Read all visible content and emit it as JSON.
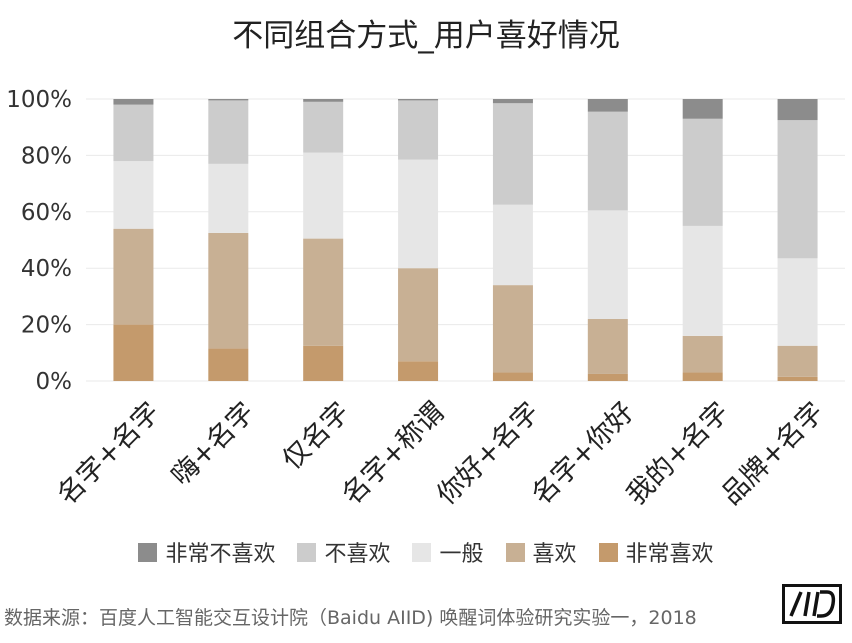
{
  "chart_data": {
    "type": "bar",
    "stacked": "percent",
    "title": "不同组合方式_用户喜好情况",
    "categories": [
      "名字+名字",
      "嗨+名字",
      "仅名字",
      "名字+称谓",
      "你好+名字",
      "名字+你好",
      "我的+名字",
      "品牌+名字"
    ],
    "y_ticks": [
      "0%",
      "20%",
      "40%",
      "60%",
      "80%",
      "100%"
    ],
    "ylim": [
      0,
      100
    ],
    "legend_position": "bottom",
    "series": [
      {
        "name": "非常喜欢",
        "color": "#C49A6C",
        "values": [
          20,
          11.5,
          12.5,
          7,
          3,
          2.5,
          3,
          1.5
        ]
      },
      {
        "name": "喜欢",
        "color": "#C8B094",
        "values": [
          34,
          41,
          38,
          33,
          31,
          19.5,
          13,
          11
        ]
      },
      {
        "name": "一般",
        "color": "#E6E6E6",
        "values": [
          24,
          24.5,
          30.5,
          38.5,
          28.5,
          38.5,
          39,
          31
        ]
      },
      {
        "name": "不喜欢",
        "color": "#CCCCCC",
        "values": [
          20,
          22.5,
          18,
          21,
          36,
          35,
          38,
          49
        ]
      },
      {
        "name": "非常不喜欢",
        "color": "#8C8C8C",
        "values": [
          2,
          0.5,
          1,
          0.5,
          1.5,
          4.5,
          7,
          7.5
        ]
      }
    ],
    "legend_order": [
      "非常不喜欢",
      "不喜欢",
      "一般",
      "喜欢",
      "非常喜欢"
    ],
    "grid": true
  },
  "source_text": "数据来源：百度人工智能交互设计院（Baidu AIID) 唤醒词体验研究实验一，2018",
  "logo_text": "AIID"
}
